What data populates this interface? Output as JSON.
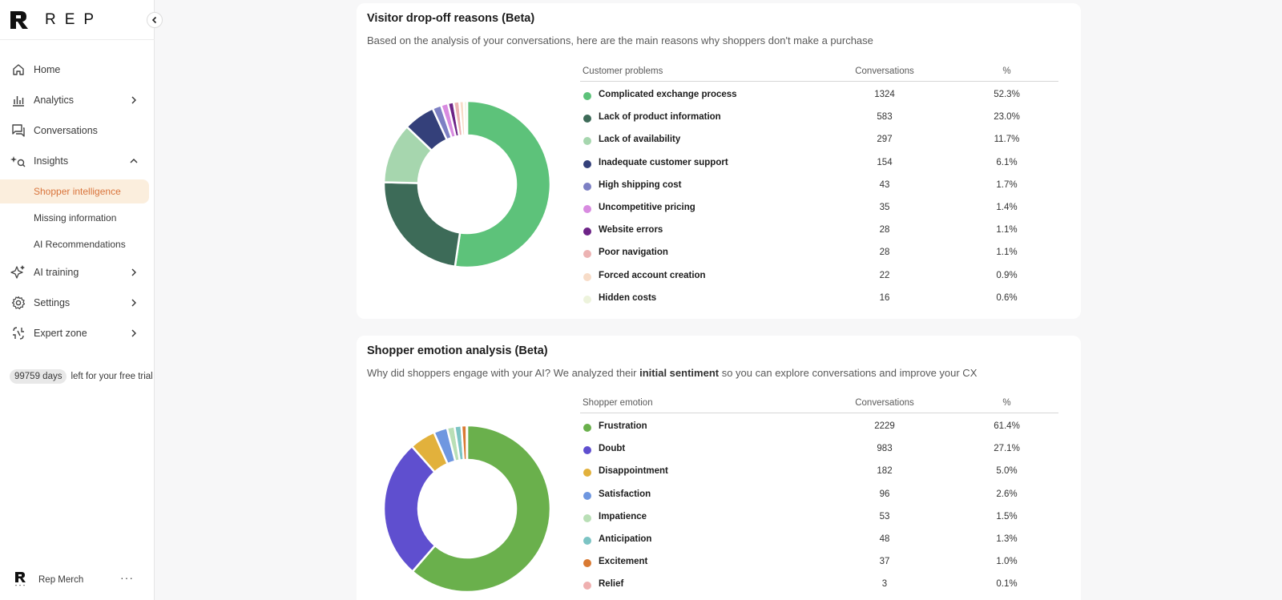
{
  "brand": {
    "name": "REP"
  },
  "nav": {
    "items": [
      {
        "label": "Home",
        "icon": "home-icon"
      },
      {
        "label": "Analytics",
        "icon": "bar-chart-icon"
      },
      {
        "label": "Conversations",
        "icon": "chat-icon"
      },
      {
        "label": "Insights",
        "icon": "sparkle-search-icon"
      },
      {
        "label": "AI training",
        "icon": "sparkles-icon"
      },
      {
        "label": "Settings",
        "icon": "gear-icon"
      },
      {
        "label": "Expert zone",
        "icon": "expert-icon"
      }
    ],
    "insights_sub": [
      "Shopper intelligence",
      "Missing information",
      "AI Recommendations"
    ]
  },
  "trial": {
    "days": "99759 days",
    "text": "left for your free trial"
  },
  "account": {
    "name": "Rep Merch",
    "more": "···"
  },
  "colors": {
    "accent": "#d9743b",
    "active_bg": "#fbeedd"
  },
  "dropoff": {
    "title": "Visitor drop-off reasons (Beta)",
    "subtitle": "Based on the analysis of your conversations, here are the main reasons why shoppers don't make a purchase",
    "headers": {
      "name": "Customer problems",
      "conv": "Conversations",
      "pct": "%"
    },
    "rows": [
      {
        "name": "Complicated exchange process",
        "conv": "1324",
        "pct": "52.3%",
        "color": "#5dc27a",
        "value": 1324
      },
      {
        "name": "Lack of product information",
        "conv": "583",
        "pct": "23.0%",
        "color": "#3d6b58",
        "value": 583
      },
      {
        "name": "Lack of availability",
        "conv": "297",
        "pct": "11.7%",
        "color": "#a6d6ae",
        "value": 297
      },
      {
        "name": "Inadequate customer support",
        "conv": "154",
        "pct": "6.1%",
        "color": "#34407a",
        "value": 154
      },
      {
        "name": "High shipping cost",
        "conv": "43",
        "pct": "1.7%",
        "color": "#7d80c4",
        "value": 43
      },
      {
        "name": "Uncompetitive pricing",
        "conv": "35",
        "pct": "1.4%",
        "color": "#d88be0",
        "value": 35
      },
      {
        "name": "Website errors",
        "conv": "28",
        "pct": "1.1%",
        "color": "#6d2487",
        "value": 28
      },
      {
        "name": "Poor navigation",
        "conv": "28",
        "pct": "1.1%",
        "color": "#ecb3b3",
        "value": 28
      },
      {
        "name": "Forced account creation",
        "conv": "22",
        "pct": "0.9%",
        "color": "#f7dcc8",
        "value": 22
      },
      {
        "name": "Hidden costs",
        "conv": "16",
        "pct": "0.6%",
        "color": "#edf3dc",
        "value": 16
      }
    ]
  },
  "emotion": {
    "title": "Shopper emotion analysis (Beta)",
    "subtitle_pre": "Why did shoppers engage with your AI? We analyzed their ",
    "subtitle_bold": "initial sentiment",
    "subtitle_post": " so you can explore conversations and improve your CX",
    "headers": {
      "name": "Shopper emotion",
      "conv": "Conversations",
      "pct": "%"
    },
    "rows": [
      {
        "name": "Frustration",
        "conv": "2229",
        "pct": "61.4%",
        "color": "#6ab04c",
        "value": 2229
      },
      {
        "name": "Doubt",
        "conv": "983",
        "pct": "27.1%",
        "color": "#5f4fcf",
        "value": 983
      },
      {
        "name": "Disappointment",
        "conv": "182",
        "pct": "5.0%",
        "color": "#e2b13c",
        "value": 182
      },
      {
        "name": "Satisfaction",
        "conv": "96",
        "pct": "2.6%",
        "color": "#6f97e0",
        "value": 96
      },
      {
        "name": "Impatience",
        "conv": "53",
        "pct": "1.5%",
        "color": "#b9dfb6",
        "value": 53
      },
      {
        "name": "Anticipation",
        "conv": "48",
        "pct": "1.3%",
        "color": "#7cc4c4",
        "value": 48
      },
      {
        "name": "Excitement",
        "conv": "37",
        "pct": "1.0%",
        "color": "#d97a33",
        "value": 37
      },
      {
        "name": "Relief",
        "conv": "3",
        "pct": "0.1%",
        "color": "#efb0b0",
        "value": 3
      }
    ]
  }
}
